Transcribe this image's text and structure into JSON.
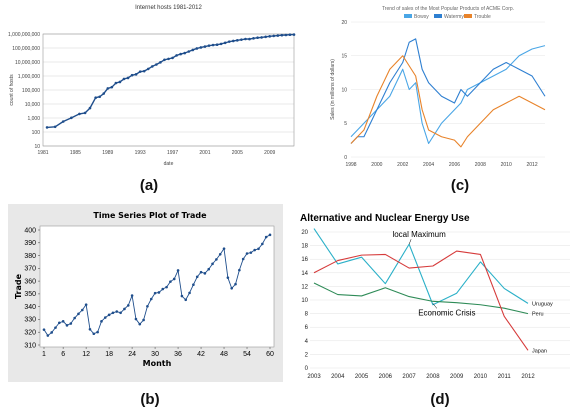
{
  "panel_labels": {
    "a": "(a)",
    "b": "(b)",
    "c": "(c)",
    "d": "(d)"
  },
  "chart_data": [
    {
      "id": "a",
      "type": "line",
      "title": "Internet hosts 1981-2012",
      "xlabel": "date",
      "ylabel": "count of hosts",
      "yscale": "log",
      "xlim": [
        1981,
        2012
      ],
      "ylim": [
        10,
        1000000000
      ],
      "xticks": [
        1981,
        1985,
        1989,
        1993,
        1997,
        2001,
        2005,
        2009
      ],
      "ytick_labels": [
        "10",
        "100",
        "1,000",
        "10,000",
        "100,000",
        "1,000,000",
        "10,000,000",
        "100,000,000",
        "1,000,000,000"
      ],
      "grid": true,
      "color": "#1f4e8c",
      "x": [
        1981.5,
        1982.5,
        1983.5,
        1984.5,
        1985.5,
        1986.2,
        1986.8,
        1987.5,
        1988,
        1988.5,
        1989,
        1989.5,
        1990,
        1990.5,
        1991,
        1991.5,
        1992,
        1992.5,
        1993,
        1993.5,
        1994,
        1994.5,
        1995,
        1995.5,
        1996,
        1996.5,
        1997,
        1997.5,
        1998,
        1998.5,
        1999,
        1999.5,
        2000,
        2000.5,
        2001,
        2001.5,
        2002,
        2002.5,
        2003,
        2003.5,
        2004,
        2004.5,
        2005,
        2005.5,
        2006,
        2006.5,
        2007,
        2007.5,
        2008,
        2008.5,
        2009,
        2009.5,
        2010,
        2010.5,
        2011,
        2011.5,
        2012
      ],
      "y": [
        213,
        235,
        562,
        1024,
        1961,
        2308,
        5089,
        28174,
        33000,
        56000,
        130000,
        159000,
        313000,
        376000,
        617000,
        727000,
        1136000,
        1313000,
        2056000,
        2217000,
        3212000,
        4852000,
        6642000,
        9472000,
        14352000,
        16729000,
        19540000,
        29670000,
        36739000,
        43230000,
        56218000,
        72398000,
        93047000,
        109574000,
        125888000,
        147345000,
        162128000,
        171638000,
        197000000,
        233000000,
        285000000,
        317000000,
        353000000,
        394000000,
        439000000,
        433000000,
        489000000,
        541000000,
        570000000,
        625000000,
        681000000,
        732000000,
        768000000,
        818000000,
        849000000,
        888000000,
        908000000
      ]
    },
    {
      "id": "b",
      "type": "line",
      "title": "Time Series Plot of Trade",
      "xlabel": "Month",
      "ylabel": "Trade",
      "xlim": [
        1,
        60
      ],
      "ylim": [
        310,
        400
      ],
      "xticks": [
        1,
        6,
        12,
        18,
        24,
        30,
        36,
        42,
        48,
        54,
        60
      ],
      "yticks": [
        310,
        320,
        330,
        340,
        350,
        360,
        370,
        380,
        390,
        400
      ],
      "color": "#1f4e8c",
      "x": [
        1,
        2,
        3,
        4,
        5,
        6,
        7,
        8,
        9,
        10,
        11,
        12,
        13,
        14,
        15,
        16,
        17,
        18,
        19,
        20,
        21,
        22,
        23,
        24,
        25,
        26,
        27,
        28,
        29,
        30,
        31,
        32,
        33,
        34,
        35,
        36,
        37,
        38,
        39,
        40,
        41,
        42,
        43,
        44,
        45,
        46,
        47,
        48,
        49,
        50,
        51,
        52,
        53,
        54,
        55,
        56,
        57,
        58,
        59,
        60
      ],
      "y": [
        322.0,
        317.4,
        319.8,
        323.6,
        327.4,
        328.5,
        325.4,
        326.8,
        331.1,
        334.4,
        337.4,
        341.6,
        322.3,
        318.8,
        320.1,
        328.5,
        331.5,
        333.6,
        335.2,
        336.2,
        335.2,
        338.2,
        341.0,
        348.7,
        330.3,
        326.3,
        329.6,
        340.3,
        346.0,
        350.6,
        351.1,
        353.8,
        355.3,
        359.6,
        361.7,
        368.4,
        348.3,
        345.4,
        350.8,
        357.2,
        363.4,
        367.0,
        366.1,
        369.3,
        373.5,
        377.0,
        381.0,
        385.4,
        362.7,
        354.4,
        357.6,
        368.6,
        377.3,
        381.6,
        382.3,
        384.3,
        385.3,
        389.1,
        394.5,
        396.2
      ]
    },
    {
      "id": "c",
      "type": "line",
      "title": "Trend of sales of the Most Popular Products of ACME Corp.",
      "ylabel": "Sales (in millions of dollars)",
      "xlim": [
        1998,
        2013
      ],
      "ylim": [
        0,
        20
      ],
      "yticks": [
        0,
        5,
        10,
        15,
        20
      ],
      "xticks": [
        1998,
        2000,
        2002,
        2004,
        2006,
        2008,
        2010,
        2012
      ],
      "legend": "top",
      "series": [
        {
          "name": "Bowsy",
          "color": "#4aa6e6",
          "x": [
            1998,
            1998.5,
            1999,
            2000,
            2001,
            2002,
            2002.5,
            2003,
            2003.5,
            2004,
            2005,
            2006,
            2006.5,
            2007,
            2008,
            2009,
            2010,
            2011,
            2012,
            2013
          ],
          "y": [
            3,
            4,
            5,
            7,
            9,
            13,
            10,
            11,
            5,
            2,
            5,
            7,
            8,
            10,
            11,
            12,
            13,
            15,
            16,
            16.5
          ]
        },
        {
          "name": "Watermy",
          "color": "#2e7fd1",
          "x": [
            1998,
            1998.5,
            1999,
            2000,
            2001,
            2002,
            2002.5,
            2003,
            2003.5,
            2004,
            2005,
            2006,
            2006.5,
            2007,
            2008,
            2009,
            2010,
            2011,
            2012,
            2013
          ],
          "y": [
            2,
            3,
            3,
            7,
            11,
            14,
            17,
            17.5,
            13,
            11,
            9,
            8,
            10,
            9,
            11,
            13,
            14,
            13,
            12,
            9
          ]
        },
        {
          "name": "Trouble",
          "color": "#e8832a",
          "x": [
            1998,
            1998.5,
            1999,
            2000,
            2001,
            2002,
            2003,
            2003.5,
            2004,
            2005,
            2006,
            2006.5,
            2007,
            2008,
            2009,
            2010,
            2011,
            2012,
            2013
          ],
          "y": [
            2,
            3,
            4,
            9,
            13,
            15,
            12,
            7,
            4,
            3,
            2.5,
            1.5,
            3,
            5,
            7,
            8,
            9,
            8,
            7
          ]
        }
      ]
    },
    {
      "id": "d",
      "type": "line",
      "title": "Alternative and Nuclear Energy Use",
      "categories": [
        "2003",
        "2004",
        "2005",
        "2006",
        "2007",
        "2008",
        "2009",
        "2010",
        "2011",
        "2012"
      ],
      "ylim": [
        0,
        20
      ],
      "yticks": [
        0,
        2,
        4,
        6,
        8,
        10,
        12,
        14,
        16,
        18,
        20
      ],
      "annotations": [
        {
          "text": "local Maximum",
          "x": "2007",
          "y": 18.2
        },
        {
          "text": "Economic Crisis",
          "x": "2008",
          "y": 9.5
        }
      ],
      "series": [
        {
          "name": "Uruguay",
          "color": "#2bb0c8",
          "values": [
            20.5,
            15.3,
            16.3,
            12.4,
            18.2,
            9.3,
            11.0,
            15.6,
            11.7,
            9.5
          ]
        },
        {
          "name": "Peru",
          "color": "#2e8b57",
          "values": [
            12.5,
            10.8,
            10.6,
            11.8,
            10.5,
            9.8,
            9.6,
            9.3,
            8.8,
            8.0
          ]
        },
        {
          "name": "Japan",
          "color": "#d63b3b",
          "values": [
            14.0,
            15.8,
            16.6,
            16.7,
            14.7,
            15.0,
            17.2,
            16.7,
            7.6,
            2.6
          ]
        }
      ]
    }
  ]
}
